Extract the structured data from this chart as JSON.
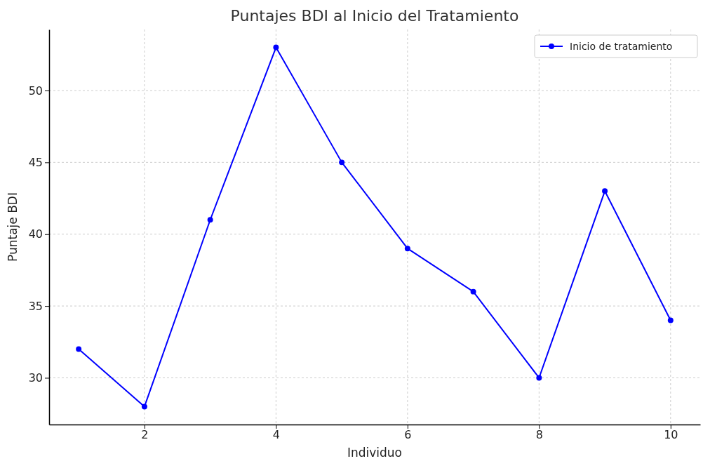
{
  "chart_data": {
    "type": "line",
    "title": "Puntajes BDI al Inicio del Tratamiento",
    "xlabel": "Individuo",
    "ylabel": "Puntaje BDI",
    "x": [
      1,
      2,
      3,
      4,
      5,
      6,
      7,
      8,
      9,
      10
    ],
    "series": [
      {
        "name": "Inicio de tratamiento",
        "color": "#0000ff",
        "values": [
          32,
          28,
          41,
          53,
          45,
          39,
          36,
          30,
          43,
          34
        ]
      }
    ],
    "xlim": [
      0.55,
      10.45
    ],
    "xticks": [
      2,
      4,
      6,
      8,
      10
    ],
    "ylim": [
      26.75,
      54.25
    ],
    "yticks": [
      30,
      35,
      40,
      45,
      50
    ],
    "grid": true,
    "legend": "top right",
    "marker": "circle",
    "line_style": "solid"
  }
}
